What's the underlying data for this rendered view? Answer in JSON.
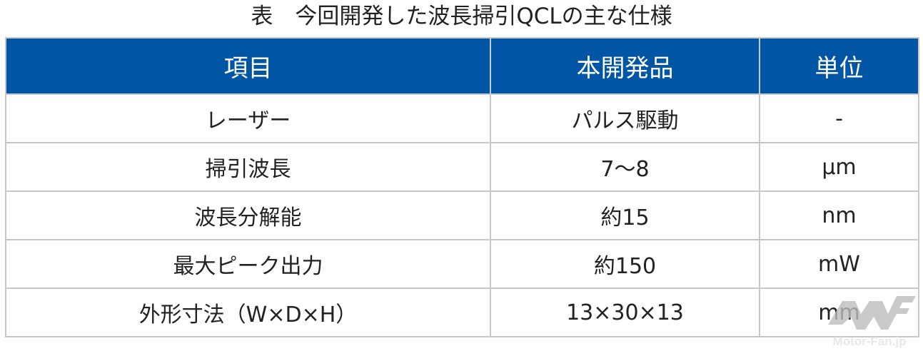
{
  "title": "表　今回開発した波長掃引QCLの主な仕様",
  "table": {
    "headers": [
      "項目",
      "本開発品",
      "単位"
    ],
    "rows": [
      [
        "レーザー",
        "パルス駆動",
        "-"
      ],
      [
        "掃引波長",
        "7〜8",
        "μm"
      ],
      [
        "波長分解能",
        "約15",
        "nm"
      ],
      [
        "最大ピーク出力",
        "約150",
        "mW"
      ],
      [
        "外形寸法（W×D×H）",
        "13×30×13",
        "mm"
      ]
    ]
  },
  "watermark": "Motor-Fan.jp",
  "colors": {
    "header_bg": "#0055a4",
    "border": "#c8c8c8"
  }
}
